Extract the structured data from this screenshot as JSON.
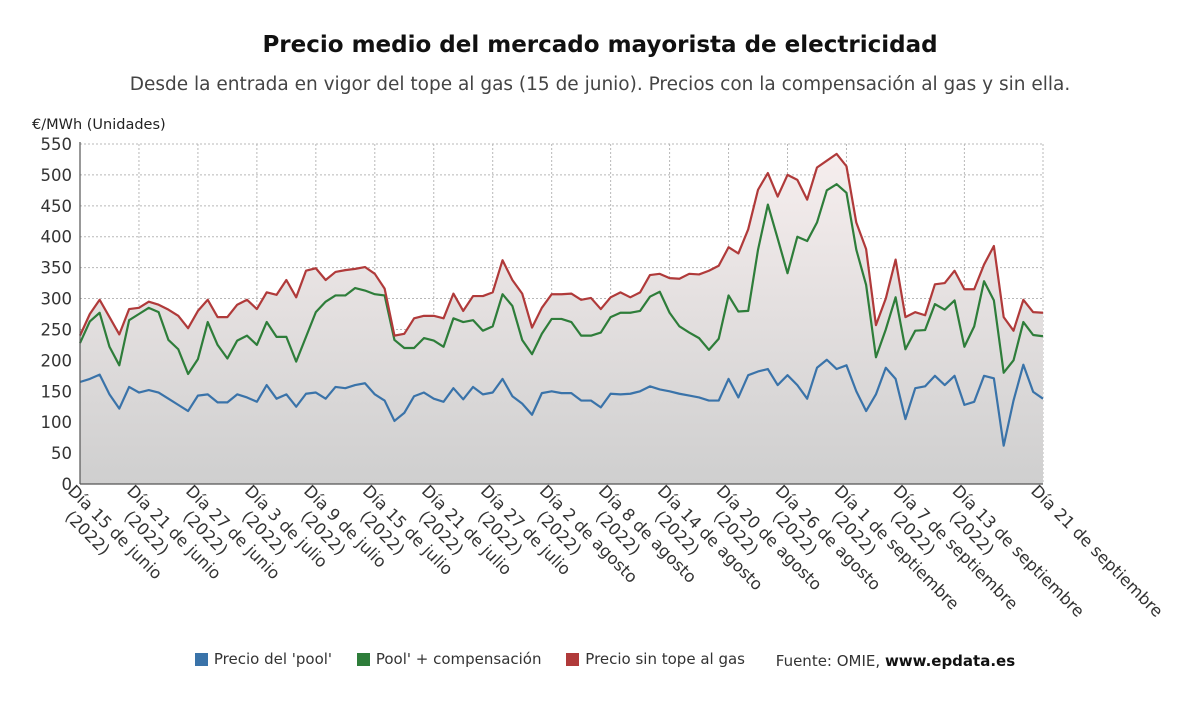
{
  "title": "Precio medio del mercado mayorista de electricidad",
  "subtitle": "Desde la entrada en vigor del tope al gas (15 de junio). Precios con la compensación al gas y sin ella.",
  "source_label": "Fuente: OMIE,",
  "source_site": "www.epdata.es",
  "colors": {
    "pool": "#3a73a9",
    "compensacion": "#2e7d3a",
    "sin_tope": "#b03a3a"
  },
  "chart_data": {
    "type": "line",
    "ylabel": "€/MWh (Unidades)",
    "ylim": [
      0,
      550
    ],
    "yticks": [
      0,
      50,
      100,
      150,
      200,
      250,
      300,
      350,
      400,
      450,
      500,
      550
    ],
    "grid": true,
    "legend_position": "bottom",
    "x": [
      "15 jun",
      "16 jun",
      "17 jun",
      "18 jun",
      "19 jun",
      "20 jun",
      "21 jun",
      "22 jun",
      "23 jun",
      "24 jun",
      "25 jun",
      "26 jun",
      "27 jun",
      "28 jun",
      "29 jun",
      "30 jun",
      "1 jul",
      "2 jul",
      "3 jul",
      "4 jul",
      "5 jul",
      "6 jul",
      "7 jul",
      "8 jul",
      "9 jul",
      "10 jul",
      "11 jul",
      "12 jul",
      "13 jul",
      "14 jul",
      "15 jul",
      "16 jul",
      "17 jul",
      "18 jul",
      "19 jul",
      "20 jul",
      "21 jul",
      "22 jul",
      "23 jul",
      "24 jul",
      "25 jul",
      "26 jul",
      "27 jul",
      "28 jul",
      "29 jul",
      "30 jul",
      "31 jul",
      "1 ago",
      "2 ago",
      "3 ago",
      "4 ago",
      "5 ago",
      "6 ago",
      "7 ago",
      "8 ago",
      "9 ago",
      "10 ago",
      "11 ago",
      "12 ago",
      "13 ago",
      "14 ago",
      "15 ago",
      "16 ago",
      "17 ago",
      "18 ago",
      "19 ago",
      "20 ago",
      "21 ago",
      "22 ago",
      "23 ago",
      "24 ago",
      "25 ago",
      "26 ago",
      "27 ago",
      "28 ago",
      "29 ago",
      "30 ago",
      "31 ago",
      "1 sep",
      "2 sep",
      "3 sep",
      "4 sep",
      "5 sep",
      "6 sep",
      "7 sep",
      "8 sep",
      "9 sep",
      "10 sep",
      "11 sep",
      "12 sep",
      "13 sep",
      "14 sep",
      "15 sep",
      "16 sep",
      "17 sep",
      "18 sep",
      "19 sep",
      "20 sep",
      "21 sep"
    ],
    "tick_labels": [
      {
        "i": 0,
        "lines": [
          "Día 15 de junio",
          "(2022)"
        ]
      },
      {
        "i": 6,
        "lines": [
          "Día 21 de junio",
          "(2022)"
        ]
      },
      {
        "i": 12,
        "lines": [
          "Día 27 de junio",
          "(2022)"
        ]
      },
      {
        "i": 18,
        "lines": [
          "Día 3 de julio",
          "(2022)"
        ]
      },
      {
        "i": 24,
        "lines": [
          "Día 9 de julio",
          "(2022)"
        ]
      },
      {
        "i": 30,
        "lines": [
          "Día 15 de julio",
          "(2022)"
        ]
      },
      {
        "i": 36,
        "lines": [
          "Día 21 de julio",
          "(2022)"
        ]
      },
      {
        "i": 42,
        "lines": [
          "Día 27 de julio",
          "(2022)"
        ]
      },
      {
        "i": 48,
        "lines": [
          "Día 2 de agosto",
          "(2022)"
        ]
      },
      {
        "i": 54,
        "lines": [
          "Día 8 de agosto",
          "(2022)"
        ]
      },
      {
        "i": 60,
        "lines": [
          "Día 14 de agosto",
          "(2022)"
        ]
      },
      {
        "i": 66,
        "lines": [
          "Día 20 de agosto",
          "(2022)"
        ]
      },
      {
        "i": 72,
        "lines": [
          "Día 26 de agosto",
          "(2022)"
        ]
      },
      {
        "i": 78,
        "lines": [
          "Día 1 de septiembre",
          "(2022)"
        ]
      },
      {
        "i": 84,
        "lines": [
          "Día 7 de septiembre",
          "(2022)"
        ]
      },
      {
        "i": 90,
        "lines": [
          "Día 13 de septiembre",
          "(2022)"
        ]
      },
      {
        "i": 98,
        "lines": [
          "Día 21 de septiembre"
        ]
      }
    ],
    "series": [
      {
        "name": "Precio del 'pool'",
        "color": "#3a73a9",
        "values": [
          165,
          170,
          177,
          145,
          122,
          157,
          148,
          152,
          148,
          138,
          128,
          118,
          143,
          145,
          132,
          132,
          145,
          140,
          133,
          160,
          138,
          145,
          125,
          146,
          148,
          138,
          157,
          155,
          160,
          163,
          145,
          135,
          102,
          115,
          142,
          148,
          138,
          133,
          155,
          137,
          157,
          145,
          148,
          170,
          142,
          130,
          112,
          147,
          150,
          147,
          147,
          135,
          135,
          124,
          146,
          145,
          146,
          150,
          158,
          153,
          150,
          146,
          143,
          140,
          135,
          135,
          170,
          140,
          176,
          182,
          186,
          160,
          176,
          160,
          138,
          188,
          201,
          186,
          192,
          150,
          118,
          145,
          188,
          170,
          105,
          155,
          158,
          175,
          160,
          175,
          128,
          133,
          175,
          171,
          62,
          135,
          193,
          149,
          138
        ]
      },
      {
        "name": "Pool' + compensación",
        "color": "#2e7d3a",
        "values": [
          228,
          263,
          277,
          222,
          192,
          265,
          275,
          285,
          278,
          233,
          218,
          178,
          202,
          262,
          225,
          203,
          232,
          240,
          225,
          262,
          238,
          238,
          198,
          238,
          278,
          295,
          305,
          305,
          317,
          313,
          307,
          305,
          233,
          220,
          220,
          236,
          232,
          222,
          268,
          262,
          265,
          248,
          255,
          307,
          288,
          233,
          210,
          243,
          267,
          267,
          262,
          240,
          240,
          245,
          270,
          277,
          277,
          280,
          303,
          311,
          277,
          255,
          245,
          236,
          217,
          235,
          305,
          279,
          280,
          379,
          452,
          397,
          341,
          400,
          393,
          423,
          475,
          485,
          471,
          379,
          322,
          205,
          250,
          302,
          218,
          248,
          249,
          291,
          282,
          297,
          222,
          255,
          328,
          297,
          180,
          200,
          262,
          241,
          239
        ]
      },
      {
        "name": "Precio sin tope al gas",
        "color": "#b03a3a",
        "values": [
          240,
          275,
          298,
          270,
          242,
          283,
          285,
          295,
          290,
          282,
          272,
          252,
          280,
          298,
          270,
          270,
          290,
          298,
          283,
          310,
          306,
          330,
          302,
          345,
          349,
          330,
          343,
          346,
          348,
          351,
          340,
          316,
          240,
          243,
          268,
          272,
          272,
          268,
          308,
          280,
          304,
          304,
          310,
          362,
          330,
          308,
          253,
          285,
          307,
          307,
          308,
          298,
          301,
          283,
          302,
          310,
          302,
          310,
          338,
          340,
          333,
          332,
          340,
          339,
          345,
          353,
          383,
          373,
          412,
          476,
          503,
          465,
          500,
          492,
          460,
          512,
          523,
          534,
          514,
          423,
          380,
          257,
          300,
          363,
          270,
          278,
          273,
          323,
          325,
          345,
          315,
          315,
          355,
          385,
          270,
          248,
          298,
          278,
          277
        ]
      }
    ]
  }
}
